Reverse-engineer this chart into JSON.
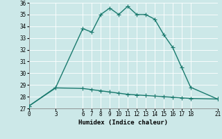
{
  "xlabel": "Humidex (Indice chaleur)",
  "background_color": "#cce8e8",
  "grid_color": "#b0d8d8",
  "line_color": "#1a7a6e",
  "xlim": [
    0,
    21
  ],
  "ylim": [
    27,
    36
  ],
  "xticks": [
    0,
    3,
    6,
    7,
    8,
    9,
    10,
    11,
    12,
    13,
    14,
    15,
    16,
    17,
    18,
    21
  ],
  "yticks": [
    27,
    28,
    29,
    30,
    31,
    32,
    33,
    34,
    35,
    36
  ],
  "line1_x": [
    0,
    3,
    6,
    7,
    8,
    9,
    10,
    11,
    12,
    13,
    14,
    15,
    16,
    17,
    18,
    21
  ],
  "line1_y": [
    27.2,
    28.8,
    33.8,
    33.5,
    35.0,
    35.55,
    35.0,
    35.7,
    35.0,
    35.0,
    34.6,
    33.3,
    32.2,
    30.5,
    28.8,
    27.8
  ],
  "line2_x": [
    0,
    3,
    6,
    7,
    8,
    9,
    10,
    11,
    12,
    13,
    14,
    15,
    16,
    17,
    18,
    21
  ],
  "line2_y": [
    27.2,
    28.75,
    28.7,
    28.6,
    28.5,
    28.4,
    28.3,
    28.2,
    28.15,
    28.1,
    28.05,
    28.0,
    27.95,
    27.9,
    27.85,
    27.8
  ],
  "marker_size": 2.5,
  "line_width": 1.0
}
